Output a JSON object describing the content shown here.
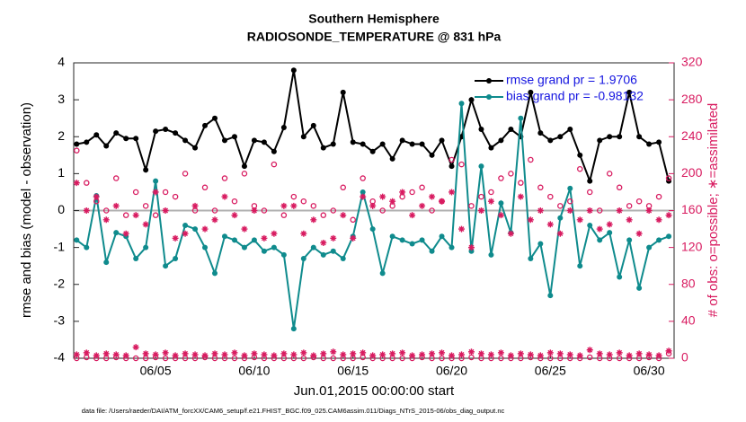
{
  "chart_data": {
    "type": "line",
    "title": "Southern Hemisphere",
    "subtitle": "RADIOSONDE_TEMPERATURE @ 831 hPa",
    "xlabel": "Jun.01,2015 00:00:00 start",
    "ylabel": "rmse and bias (model - observation)",
    "y2label": "# of obs: o=possible; ∗=assimilated",
    "footnote": "data file: /Users/raeder/DAI/ATM_forcXX/CAM6_setup/f.e21.FHIST_BGC.f09_025.CAM6assim.011/Diags_NTrS_2015-06/obs_diag_output.nc",
    "x": [
      1,
      1.5,
      2,
      2.5,
      3,
      3.5,
      4,
      4.5,
      5,
      5.5,
      6,
      6.5,
      7,
      7.5,
      8,
      8.5,
      9,
      9.5,
      10,
      10.5,
      11,
      11.5,
      12,
      12.5,
      13,
      13.5,
      14,
      14.5,
      15,
      15.5,
      16,
      16.5,
      17,
      17.5,
      18,
      18.5,
      19,
      19.5,
      20,
      20.5,
      21,
      21.5,
      22,
      22.5,
      23,
      23.5,
      24,
      24.5,
      25,
      25.5,
      26,
      26.5,
      27,
      27.5,
      28,
      28.5,
      29,
      29.5,
      30,
      30.5,
      31
    ],
    "xlim": [
      0.85,
      31.27
    ],
    "xticks": [
      {
        "value": 5,
        "label": "06/05"
      },
      {
        "value": 10,
        "label": "06/10"
      },
      {
        "value": 15,
        "label": "06/15"
      },
      {
        "value": 20,
        "label": "06/20"
      },
      {
        "value": 25,
        "label": "06/25"
      },
      {
        "value": 30,
        "label": "06/30"
      }
    ],
    "ylim": [
      -4,
      4
    ],
    "yticks": [
      -4,
      -3,
      -2,
      -1,
      0,
      1,
      2,
      3,
      4
    ],
    "y2lim": [
      0,
      320
    ],
    "y2ticks": [
      0,
      40,
      80,
      120,
      160,
      200,
      240,
      280,
      320
    ],
    "legend": "upper right",
    "series": [
      {
        "name": "rmse grand pr = 1.9706",
        "color": "#000000",
        "marker": "filled",
        "values": [
          1.8,
          1.85,
          2.05,
          1.75,
          2.1,
          1.95,
          1.95,
          1.1,
          2.15,
          2.2,
          2.1,
          1.9,
          1.7,
          2.3,
          2.5,
          1.9,
          2.0,
          1.2,
          1.9,
          1.85,
          1.6,
          2.25,
          3.8,
          2.0,
          2.3,
          1.7,
          1.8,
          3.2,
          1.85,
          1.8,
          1.6,
          1.8,
          1.4,
          1.9,
          1.8,
          1.8,
          1.5,
          1.9,
          1.2,
          2.0,
          3.0,
          2.2,
          1.7,
          1.9,
          2.2,
          2.0,
          3.2,
          2.1,
          1.9,
          2.0,
          2.2,
          1.5,
          0.8,
          1.9,
          2.0,
          2.0,
          3.2,
          2.0,
          1.8,
          1.85,
          0.8
        ]
      },
      {
        "name": "bias grand pr = -0.98132",
        "color": "#0f8b8d",
        "marker": "filled",
        "values": [
          -0.8,
          -1.0,
          0.4,
          -1.4,
          -0.6,
          -0.7,
          -1.3,
          -1.0,
          0.8,
          -1.5,
          -1.3,
          -0.4,
          -0.5,
          -1.0,
          -1.7,
          -0.7,
          -0.8,
          -1.0,
          -0.8,
          -1.1,
          -1.0,
          -1.2,
          -3.2,
          -1.3,
          -1.0,
          -1.2,
          -1.1,
          -1.3,
          -0.7,
          0.5,
          -0.5,
          -1.7,
          -0.7,
          -0.8,
          -0.9,
          -0.8,
          -1.1,
          -0.7,
          -1.0,
          2.9,
          -1.1,
          1.2,
          -1.2,
          0.2,
          -0.6,
          2.5,
          -1.3,
          -0.9,
          -2.3,
          -0.2,
          0.6,
          -1.5,
          -0.4,
          -0.8,
          -0.6,
          -1.8,
          -0.8,
          -2.1,
          -1.0,
          -0.8,
          -0.7
        ]
      },
      {
        "color": "#d81b60",
        "marker": "o",
        "axis": "y2",
        "values": [
          225,
          190,
          170,
          160,
          195,
          155,
          180,
          165,
          155,
          180,
          175,
          200,
          160,
          185,
          160,
          195,
          170,
          200,
          165,
          160,
          210,
          155,
          175,
          170,
          165,
          155,
          160,
          185,
          150,
          195,
          170,
          160,
          165,
          175,
          180,
          185,
          160,
          170,
          215,
          210,
          165,
          175,
          180,
          195,
          200,
          190,
          215,
          185,
          175,
          165,
          170,
          205,
          180,
          160,
          200,
          185,
          165,
          170,
          165,
          175,
          195
        ]
      },
      {
        "color": "#d81b60",
        "marker": "*",
        "axis": "y2",
        "values": [
          190,
          160,
          175,
          150,
          165,
          135,
          155,
          145,
          180,
          160,
          130,
          135,
          165,
          140,
          150,
          175,
          155,
          140,
          160,
          130,
          135,
          165,
          165,
          135,
          150,
          125,
          130,
          155,
          130,
          175,
          165,
          175,
          170,
          180,
          155,
          165,
          175,
          170,
          180,
          140,
          120,
          160,
          170,
          155,
          135,
          175,
          150,
          160,
          145,
          135,
          160,
          150,
          160,
          140,
          145,
          160,
          150,
          135,
          160,
          150,
          155
        ]
      },
      {
        "color": "#d81b60",
        "marker": "o",
        "axis": "y2",
        "values": [
          0,
          1,
          0,
          0,
          1,
          0,
          0,
          0,
          1,
          0,
          0,
          0,
          0,
          1,
          0,
          0,
          0,
          0,
          1,
          0,
          0,
          0,
          0,
          0,
          1,
          0,
          0,
          0,
          0,
          1,
          0,
          0,
          0,
          0,
          0,
          1,
          0,
          0,
          0,
          0,
          1,
          0,
          0,
          0,
          0,
          0,
          1,
          0,
          0,
          0,
          0,
          0,
          1,
          0,
          0,
          0,
          0,
          0,
          1,
          0,
          5
        ]
      },
      {
        "color": "#d81b60",
        "marker": "*",
        "axis": "y2",
        "values": [
          4,
          6,
          3,
          5,
          4,
          3,
          12,
          5,
          4,
          6,
          3,
          5,
          4,
          3,
          5,
          4,
          6,
          3,
          5,
          4,
          3,
          5,
          4,
          6,
          3,
          5,
          7,
          4,
          5,
          6,
          3,
          4,
          5,
          6,
          3,
          4,
          5,
          6,
          3,
          4,
          7,
          5,
          4,
          6,
          3,
          5,
          4,
          3,
          6,
          5,
          4,
          3,
          9,
          5,
          4,
          6,
          3,
          5,
          4,
          3,
          8
        ]
      }
    ]
  }
}
